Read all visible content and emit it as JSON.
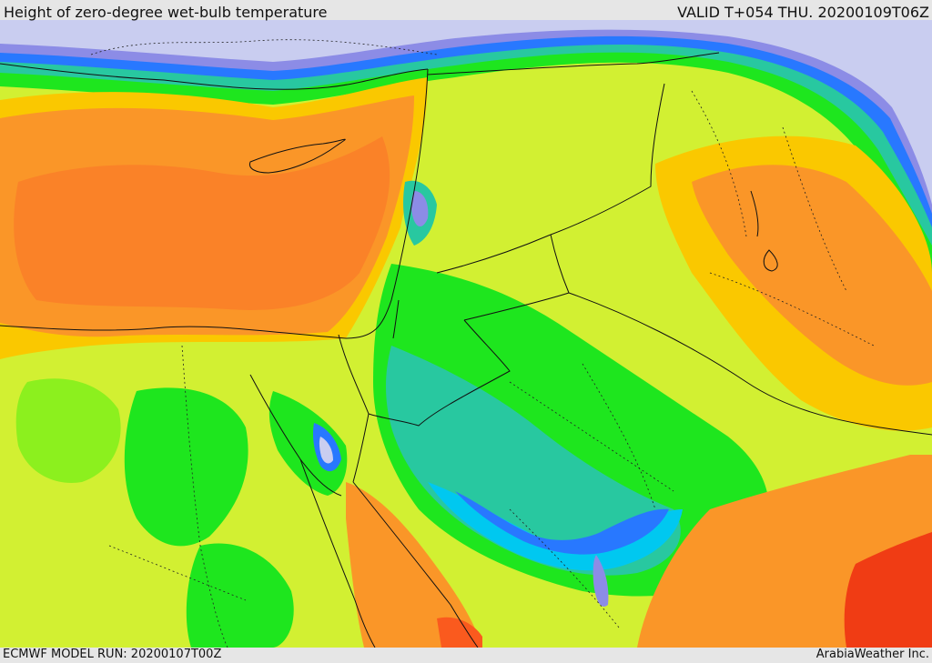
{
  "header": {
    "title": "Height of zero-degree wet-bulb temperature",
    "valid": "VALID T+054 THU. 20200109T06Z"
  },
  "footer": {
    "model_run": "ECMWF MODEL RUN: 20200107T00Z",
    "credit": "ArabiaWeather Inc."
  },
  "palette": {
    "very_low": "#c9cdf0",
    "low_purple": "#8c8ce6",
    "blue": "#2878ff",
    "cyan": "#00c8f0",
    "teal": "#28c8a0",
    "green": "#1ee61e",
    "light_green": "#8cf01e",
    "yellow_green": "#d2f032",
    "yellow": "#fac800",
    "orange": "#fa9628",
    "dark_orange": "#fa8228",
    "red_orange": "#fa5a1e",
    "red": "#f03c14"
  }
}
